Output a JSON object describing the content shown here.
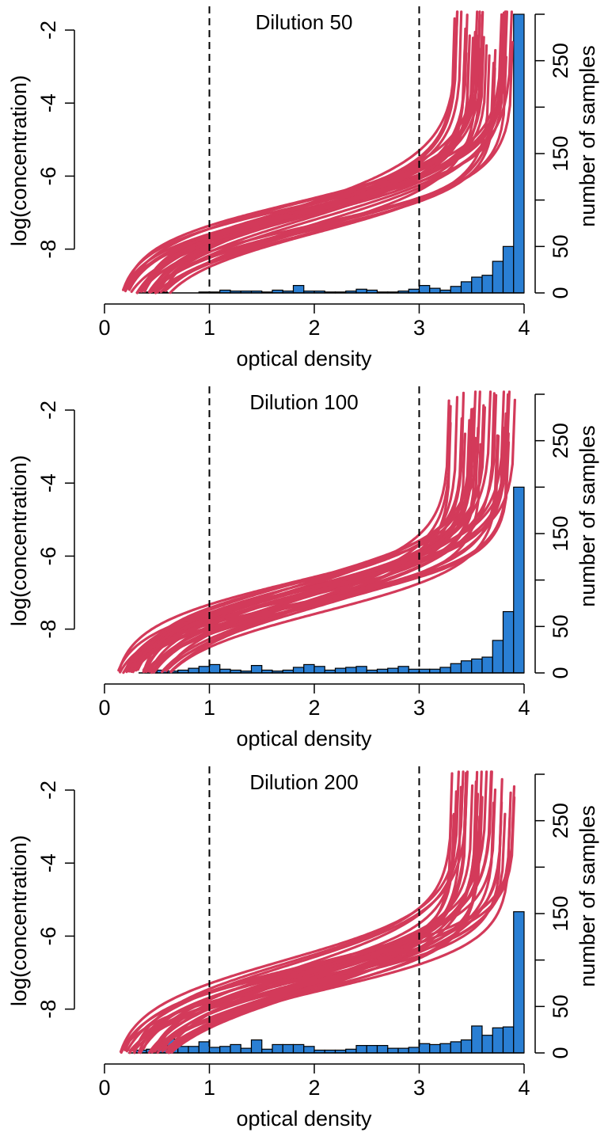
{
  "chart_data": [
    {
      "type": "line",
      "title": "Dilution 50",
      "xlabel": "optical density",
      "ylabel_left": "log(concentration)",
      "ylabel_right": "number of samples",
      "xlim": [
        0,
        4
      ],
      "ylim_left": [
        -9.2,
        -2
      ],
      "ylim_right": [
        0,
        300
      ],
      "x_ticks": [
        "0",
        "1",
        "2",
        "3",
        "4"
      ],
      "y_left_ticks": [
        "-2",
        "-4",
        "-6",
        "-8"
      ],
      "y_right_ticks": [
        "0",
        "50",
        "150",
        "250"
      ],
      "reference_lines_x": [
        1,
        3
      ],
      "curves_color": "#d33a5a",
      "histogram": {
        "color": "#2a7fd4",
        "bin_width": 0.1,
        "bin_starts": [
          0.4,
          0.5,
          0.6,
          0.7,
          0.8,
          0.9,
          1.0,
          1.1,
          1.2,
          1.3,
          1.4,
          1.5,
          1.6,
          1.7,
          1.8,
          1.9,
          2.0,
          2.1,
          2.2,
          2.3,
          2.4,
          2.5,
          2.6,
          2.7,
          2.8,
          2.9,
          3.0,
          3.1,
          3.2,
          3.3,
          3.4,
          3.5,
          3.6,
          3.7,
          3.8,
          3.9
        ],
        "counts": [
          1,
          1,
          0,
          0,
          0,
          1,
          1,
          3,
          2,
          2,
          2,
          1,
          3,
          2,
          8,
          2,
          2,
          1,
          1,
          2,
          4,
          3,
          1,
          1,
          2,
          4,
          8,
          5,
          3,
          7,
          12,
          17,
          19,
          34,
          50,
          300
        ]
      }
    },
    {
      "type": "line",
      "title": "Dilution 100",
      "xlabel": "optical density",
      "ylabel_left": "log(concentration)",
      "ylabel_right": "number of samples",
      "xlim": [
        0,
        4
      ],
      "ylim_left": [
        -9.2,
        -2
      ],
      "ylim_right": [
        0,
        300
      ],
      "x_ticks": [
        "0",
        "1",
        "2",
        "3",
        "4"
      ],
      "y_left_ticks": [
        "-2",
        "-4",
        "-6",
        "-8"
      ],
      "y_right_ticks": [
        "0",
        "50",
        "150",
        "250"
      ],
      "reference_lines_x": [
        1,
        3
      ],
      "curves_color": "#d33a5a",
      "histogram": {
        "color": "#2a7fd4",
        "bin_width": 0.1,
        "bin_starts": [
          0.4,
          0.5,
          0.6,
          0.7,
          0.8,
          0.9,
          1.0,
          1.1,
          1.2,
          1.3,
          1.4,
          1.5,
          1.6,
          1.7,
          1.8,
          1.9,
          2.0,
          2.1,
          2.2,
          2.3,
          2.4,
          2.5,
          2.6,
          2.7,
          2.8,
          2.9,
          3.0,
          3.1,
          3.2,
          3.3,
          3.4,
          3.5,
          3.6,
          3.7,
          3.8,
          3.9
        ],
        "counts": [
          4,
          3,
          2,
          3,
          5,
          7,
          9,
          4,
          3,
          2,
          8,
          3,
          2,
          3,
          6,
          9,
          7,
          3,
          5,
          6,
          7,
          3,
          4,
          5,
          7,
          4,
          4,
          4,
          6,
          10,
          13,
          15,
          17,
          35,
          66,
          200
        ]
      }
    },
    {
      "type": "line",
      "title": "Dilution 200",
      "xlabel": "optical density",
      "ylabel_left": "log(concentration)",
      "ylabel_right": "number of samples",
      "xlim": [
        0,
        4
      ],
      "ylim_left": [
        -9.2,
        -2
      ],
      "ylim_right": [
        0,
        300
      ],
      "x_ticks": [
        "0",
        "1",
        "2",
        "3",
        "4"
      ],
      "y_left_ticks": [
        "-2",
        "-4",
        "-6",
        "-8"
      ],
      "y_right_ticks": [
        "0",
        "50",
        "150",
        "250"
      ],
      "reference_lines_x": [
        1,
        3
      ],
      "curves_color": "#d33a5a",
      "histogram": {
        "color": "#2a7fd4",
        "bin_width": 0.1,
        "bin_starts": [
          0.3,
          0.4,
          0.5,
          0.6,
          0.7,
          0.8,
          0.9,
          1.0,
          1.1,
          1.2,
          1.3,
          1.4,
          1.5,
          1.6,
          1.7,
          1.8,
          1.9,
          2.0,
          2.1,
          2.2,
          2.3,
          2.4,
          2.5,
          2.6,
          2.7,
          2.8,
          2.9,
          3.0,
          3.1,
          3.2,
          3.3,
          3.4,
          3.5,
          3.6,
          3.7,
          3.8,
          3.9
        ],
        "counts": [
          3,
          4,
          5,
          15,
          7,
          7,
          12,
          6,
          7,
          9,
          5,
          14,
          4,
          9,
          9,
          9,
          7,
          3,
          3,
          3,
          4,
          8,
          8,
          8,
          5,
          5,
          6,
          10,
          9,
          10,
          12,
          14,
          29,
          19,
          27,
          28,
          152
        ]
      }
    }
  ]
}
